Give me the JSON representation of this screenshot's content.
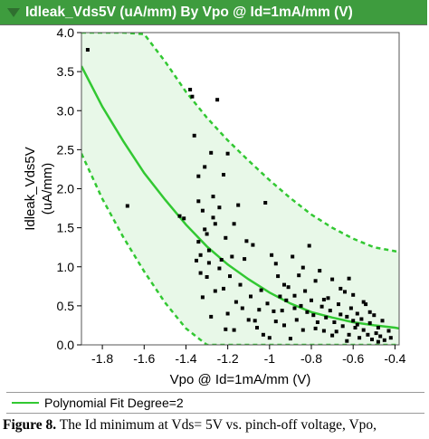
{
  "title": "Idleak_Vds5V (uA/mm) By Vpo @ Id=1mA/mm (V)",
  "legend": {
    "label": "Polynomial Fit Degree=2"
  },
  "caption": {
    "prefix": "Figure 8.",
    "text": "  The Id minimum at Vds= 5V vs. pinch-off voltage, Vpo,"
  },
  "colors": {
    "header": "#3e9c3e",
    "fit_line": "#32c832",
    "band_fill": "#e8f8e8",
    "points": "#000000"
  },
  "chart_data": {
    "type": "scatter",
    "xlabel": "Vpo @ Id=1mA/mm (V)",
    "ylabel": "Idleak_Vds5V\n(uA/mm)",
    "xlim": [
      -1.9,
      -0.38
    ],
    "ylim": [
      0,
      4.0
    ],
    "xticks": [
      -1.8,
      -1.6,
      -1.4,
      -1.2,
      -1.0,
      -0.8,
      -0.6,
      -0.4
    ],
    "xtick_labels": [
      "-1.8",
      "-1.6",
      "-1.4",
      "-1.2",
      "-1",
      "-0.8",
      "-0.6",
      "-0.4"
    ],
    "yticks": [
      0,
      0.5,
      1.0,
      1.5,
      2.0,
      2.5,
      3.0,
      3.5,
      4.0
    ],
    "ytick_labels": [
      "0.0",
      "0.5",
      "1.0",
      "1.5",
      "2.0",
      "2.5",
      "3.0",
      "3.5",
      "4.0"
    ],
    "grid": false,
    "fit": {
      "name": "Polynomial Fit Degree=2",
      "x": [
        -1.9,
        -1.8,
        -1.7,
        -1.6,
        -1.5,
        -1.4,
        -1.3,
        -1.2,
        -1.1,
        -1.0,
        -0.9,
        -0.8,
        -0.7,
        -0.6,
        -0.5,
        -0.4,
        -0.38
      ],
      "y": [
        3.57,
        3.05,
        2.61,
        2.2,
        1.86,
        1.54,
        1.26,
        1.03,
        0.84,
        0.67,
        0.53,
        0.42,
        0.35,
        0.29,
        0.25,
        0.22,
        0.21
      ]
    },
    "band_upper": {
      "x": [
        -1.9,
        -1.8,
        -1.7,
        -1.6,
        -1.5,
        -1.4,
        -1.3,
        -1.2,
        -1.1,
        -1.0,
        -0.9,
        -0.8,
        -0.7,
        -0.6,
        -0.5,
        -0.4,
        -0.38
      ],
      "y": [
        4.0,
        4.0,
        4.0,
        3.98,
        3.63,
        3.24,
        2.91,
        2.62,
        2.36,
        2.11,
        1.88,
        1.67,
        1.5,
        1.36,
        1.25,
        1.2,
        1.19
      ]
    },
    "band_lower": {
      "x": [
        -1.9,
        -1.8,
        -1.7,
        -1.6,
        -1.5,
        -1.4,
        -1.3,
        -1.2,
        -1.1,
        -1.0,
        -0.9,
        -0.8,
        -0.7,
        -0.6,
        -0.5,
        -0.4,
        -0.38
      ],
      "y": [
        2.45,
        1.87,
        1.38,
        0.94,
        0.54,
        0.21,
        0.0,
        0.0,
        0.0,
        0.0,
        0.0,
        0.0,
        0.0,
        0.0,
        0.0,
        0.0,
        0.0
      ]
    },
    "points": [
      [
        -1.87,
        3.78
      ],
      [
        -1.68,
        1.78
      ],
      [
        -1.43,
        1.65
      ],
      [
        -1.41,
        1.62
      ],
      [
        -1.38,
        3.27
      ],
      [
        -1.37,
        3.18
      ],
      [
        -1.36,
        2.68
      ],
      [
        -1.35,
        1.08
      ],
      [
        -1.34,
        2.16
      ],
      [
        -1.34,
        1.84
      ],
      [
        -1.34,
        1.32
      ],
      [
        -1.33,
        1.15
      ],
      [
        -1.33,
        0.92
      ],
      [
        -1.32,
        1.72
      ],
      [
        -1.32,
        0.61
      ],
      [
        -1.31,
        1.48
      ],
      [
        -1.31,
        2.28
      ],
      [
        -1.3,
        1.42
      ],
      [
        -1.3,
        0.87
      ],
      [
        -1.29,
        1.05
      ],
      [
        -1.29,
        1.21
      ],
      [
        -1.28,
        2.46
      ],
      [
        -1.28,
        0.36
      ],
      [
        -1.27,
        1.9
      ],
      [
        -1.27,
        1.63
      ],
      [
        -1.26,
        1.55
      ],
      [
        -1.25,
        3.14
      ],
      [
        -1.24,
        1.76
      ],
      [
        -1.24,
        0.98
      ],
      [
        -1.23,
        1.09
      ],
      [
        -1.22,
        2.18
      ],
      [
        -1.22,
        0.72
      ],
      [
        -1.21,
        1.37
      ],
      [
        -1.2,
        2.45
      ],
      [
        -1.2,
        0.4
      ],
      [
        -1.19,
        0.88
      ],
      [
        -1.18,
        1.13
      ],
      [
        -1.17,
        0.19
      ],
      [
        -1.17,
        1.55
      ],
      [
        -1.16,
        0.55
      ],
      [
        -1.15,
        1.79
      ],
      [
        -1.14,
        0.77
      ],
      [
        -1.12,
        1.1
      ],
      [
        -1.11,
        1.33
      ],
      [
        -1.1,
        0.32
      ],
      [
        -1.09,
        0.62
      ],
      [
        -1.07,
        0.31
      ],
      [
        -1.06,
        0.22
      ],
      [
        -1.05,
        0.45
      ],
      [
        -1.04,
        0.7
      ],
      [
        -1.03,
        0.13
      ],
      [
        -1.02,
        1.82
      ],
      [
        -1.01,
        0.53
      ],
      [
        -0.99,
        1.15
      ],
      [
        -0.98,
        0.43
      ],
      [
        -0.97,
        0.3
      ],
      [
        -0.96,
        0.88
      ],
      [
        -0.95,
        0.62
      ],
      [
        -0.94,
        0.44
      ],
      [
        -0.93,
        0.25
      ],
      [
        -0.92,
        0.57
      ],
      [
        -0.91,
        0.74
      ],
      [
        -0.9,
        0.08
      ],
      [
        -0.89,
        1.13
      ],
      [
        -0.88,
        0.47
      ],
      [
        -0.87,
        0.32
      ],
      [
        -0.86,
        0.89
      ],
      [
        -0.85,
        0.5
      ],
      [
        -0.84,
        0.19
      ],
      [
        -0.83,
        0.69
      ],
      [
        -0.82,
        0.42
      ],
      [
        -0.81,
        1.27
      ],
      [
        -0.8,
        0.57
      ],
      [
        -0.79,
        0.38
      ],
      [
        -0.78,
        0.82
      ],
      [
        -0.77,
        0.29
      ],
      [
        -0.76,
        0.95
      ],
      [
        -0.75,
        0.49
      ],
      [
        -0.74,
        0.18
      ],
      [
        -0.73,
        0.35
      ],
      [
        -0.72,
        0.6
      ],
      [
        -0.71,
        0.44
      ],
      [
        -0.7,
        0.84
      ],
      [
        -0.69,
        0.29
      ],
      [
        -0.68,
        0.17
      ],
      [
        -0.67,
        0.52
      ],
      [
        -0.66,
        0.39
      ],
      [
        -0.65,
        0.24
      ],
      [
        -0.64,
        0.68
      ],
      [
        -0.63,
        0.36
      ],
      [
        -0.62,
        0.13
      ],
      [
        -0.61,
        0.47
      ],
      [
        -0.6,
        0.31
      ],
      [
        -0.59,
        0.22
      ],
      [
        -0.58,
        0.4
      ],
      [
        -0.57,
        0.09
      ],
      [
        -0.56,
        0.33
      ],
      [
        -0.55,
        0.19
      ],
      [
        -0.54,
        0.52
      ],
      [
        -0.53,
        0.13
      ],
      [
        -0.52,
        0.28
      ],
      [
        -0.51,
        0.07
      ],
      [
        -0.5,
        0.38
      ],
      [
        -0.49,
        0.15
      ],
      [
        -0.48,
        0.22
      ],
      [
        -0.47,
        0.11
      ],
      [
        -0.46,
        0.31
      ],
      [
        -0.45,
        0.06
      ],
      [
        -0.43,
        0.18
      ],
      [
        -0.42,
        0.09
      ],
      [
        -0.6,
        0.64
      ],
      [
        -0.58,
        0.26
      ],
      [
        -0.63,
        0.05
      ],
      [
        -0.7,
        0.12
      ],
      [
        -0.66,
        0.72
      ],
      [
        -0.55,
        0.55
      ],
      [
        -0.52,
        0.42
      ],
      [
        -0.48,
        0.04
      ],
      [
        -0.74,
        0.58
      ],
      [
        -0.78,
        0.21
      ],
      [
        -0.84,
        0.99
      ],
      [
        -0.88,
        0.63
      ],
      [
        -0.93,
        0.77
      ],
      [
        -1.0,
        0.09
      ],
      [
        -1.13,
        0.47
      ],
      [
        -1.26,
        0.69
      ],
      [
        -1.21,
        0.2
      ],
      [
        -1.08,
        1.28
      ],
      [
        -0.97,
        1.04
      ],
      [
        -0.62,
        0.85
      ]
    ]
  }
}
